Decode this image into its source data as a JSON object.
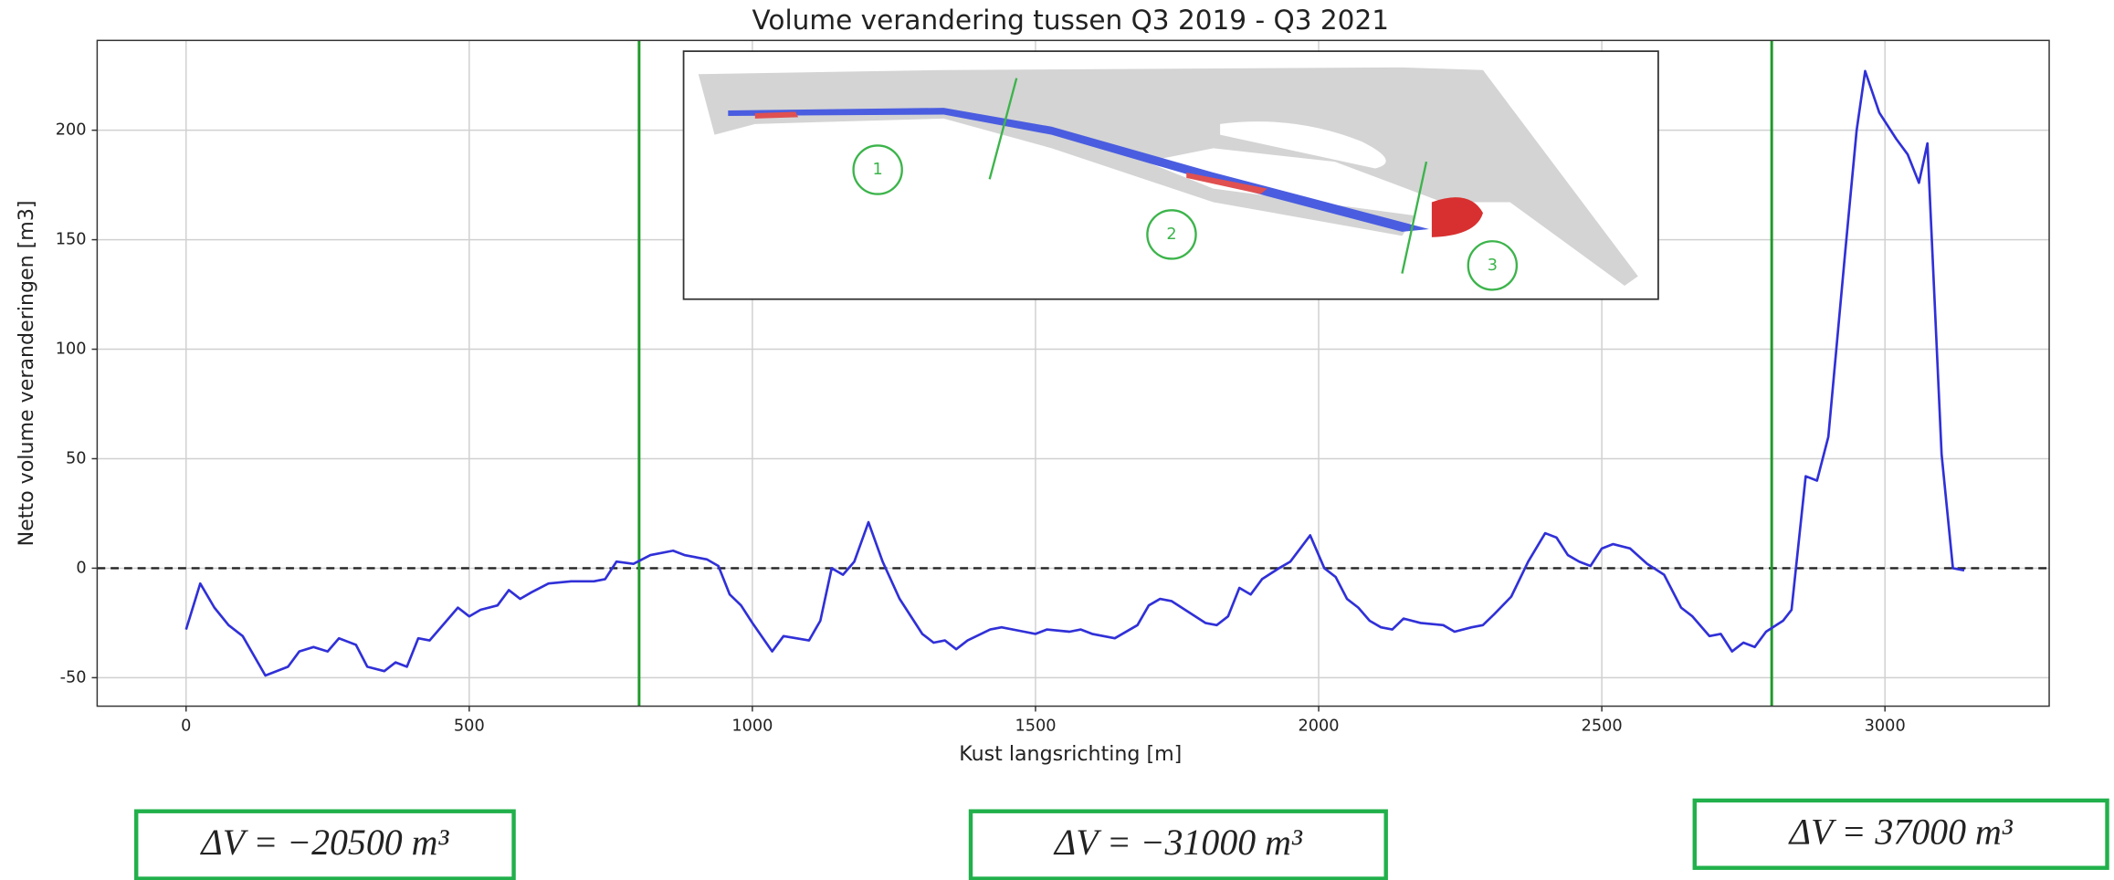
{
  "chart_data": {
    "type": "line",
    "title": "Volume verandering tussen Q3 2019 - Q3 2021",
    "xlabel": "Kust langsrichting [m]",
    "ylabel": "Netto volume veranderingen [m3]",
    "x": [
      0,
      25,
      50,
      75,
      100,
      140,
      180,
      200,
      225,
      250,
      270,
      300,
      320,
      350,
      370,
      390,
      410,
      430,
      450,
      480,
      500,
      520,
      550,
      570,
      590,
      610,
      640,
      680,
      720,
      740,
      760,
      790,
      820,
      860,
      880,
      920,
      940,
      960,
      980,
      1000,
      1035,
      1055,
      1100,
      1120,
      1140,
      1160,
      1180,
      1205,
      1230,
      1260,
      1300,
      1320,
      1340,
      1360,
      1380,
      1420,
      1440,
      1480,
      1500,
      1520,
      1560,
      1580,
      1600,
      1640,
      1680,
      1700,
      1720,
      1740,
      1770,
      1800,
      1820,
      1840,
      1860,
      1880,
      1900,
      1930,
      1950,
      1985,
      2010,
      2030,
      2050,
      2070,
      2090,
      2110,
      2130,
      2150,
      2180,
      2220,
      2240,
      2270,
      2290,
      2310,
      2340,
      2370,
      2400,
      2420,
      2440,
      2460,
      2480,
      2500,
      2520,
      2550,
      2580,
      2610,
      2640,
      2660,
      2690,
      2710,
      2730,
      2750,
      2770,
      2790,
      2820,
      2835,
      2860,
      2880,
      2900,
      2930,
      2950,
      2965,
      2990,
      3020,
      3040,
      3060,
      3075,
      3100,
      3120,
      3140
    ],
    "values": [
      -28,
      -7,
      -18,
      -26,
      -31,
      -49,
      -45,
      -38,
      -36,
      -38,
      -32,
      -35,
      -45,
      -47,
      -43,
      -45,
      -32,
      -33,
      -27,
      -18,
      -22,
      -19,
      -17,
      -10,
      -14,
      -11,
      -7,
      -6,
      -6,
      -5,
      3,
      2,
      6,
      8,
      6,
      4,
      1,
      -12,
      -17,
      -25,
      -38,
      -31,
      -33,
      -24,
      0,
      -3,
      3,
      21,
      3,
      -14,
      -30,
      -34,
      -33,
      -37,
      -33,
      -28,
      -27,
      -29,
      -30,
      -28,
      -29,
      -28,
      -30,
      -32,
      -26,
      -17,
      -14,
      -15,
      -20,
      -25,
      -26,
      -22,
      -9,
      -12,
      -5,
      0,
      3,
      15,
      0,
      -4,
      -14,
      -18,
      -24,
      -27,
      -28,
      -23,
      -25,
      -26,
      -29,
      -27,
      -26,
      -21,
      -13,
      3,
      16,
      14,
      6,
      3,
      1,
      9,
      11,
      9,
      2,
      -3,
      -18,
      -22,
      -31,
      -30,
      -38,
      -34,
      -36,
      -29,
      -24,
      -19,
      42,
      40,
      60,
      145,
      200,
      227,
      208,
      196,
      189,
      176,
      194,
      52,
      0,
      -1
    ],
    "color": "#3030d8",
    "xlim": [
      -157,
      3290
    ],
    "ylim": [
      -63,
      241
    ],
    "xticks": [
      0,
      500,
      1000,
      1500,
      2000,
      2500,
      3000
    ],
    "yticks": [
      -50,
      0,
      50,
      100,
      150,
      200
    ],
    "grid": true,
    "hline": 0,
    "vlines": [
      800,
      2800
    ],
    "vline_color": "#1f9a2a",
    "annotations": [
      "ΔV = −20500 m³",
      "ΔV = −31000 m³",
      "ΔV = 37000 m³"
    ]
  },
  "inset": {
    "labels": [
      "1",
      "2",
      "3"
    ]
  }
}
